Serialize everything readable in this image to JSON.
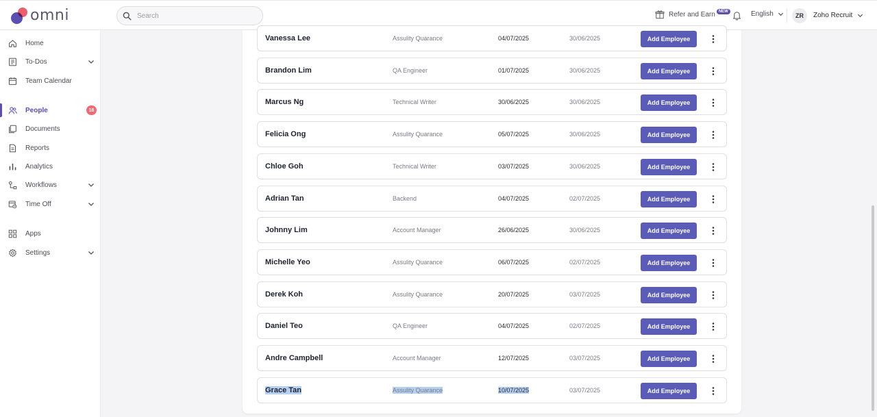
{
  "app": {
    "logo_text": "omni"
  },
  "search": {
    "placeholder": "Search"
  },
  "header": {
    "refer_label": "Refer and Earn",
    "refer_badge": "NEW",
    "language": "English",
    "avatar_initials": "ZR",
    "org_name": "Zoho Recruit"
  },
  "sidebar": {
    "items": [
      {
        "label": "Home",
        "icon": "home-icon"
      },
      {
        "label": "To-Dos",
        "icon": "todo-icon",
        "expandable": true
      },
      {
        "label": "Team Calendar",
        "icon": "calendar-icon"
      },
      {
        "label": "People",
        "icon": "people-icon",
        "active": true,
        "count": "18"
      },
      {
        "label": "Documents",
        "icon": "documents-icon"
      },
      {
        "label": "Reports",
        "icon": "reports-icon"
      },
      {
        "label": "Analytics",
        "icon": "analytics-icon"
      },
      {
        "label": "Workflows",
        "icon": "workflows-icon",
        "expandable": true
      },
      {
        "label": "Time Off",
        "icon": "time-off-icon",
        "expandable": true
      },
      {
        "label": "Apps",
        "icon": "apps-icon"
      },
      {
        "label": "Settings",
        "icon": "settings-icon",
        "expandable": true
      }
    ]
  },
  "candidates": {
    "button_label": "Add Employee",
    "rows": [
      {
        "name": "Vanessa Lee",
        "role": "Assulity Quarance",
        "start_date": "04/07/2025",
        "date2": "30/06/2025"
      },
      {
        "name": "Brandon Lim",
        "role": "QA Engineer",
        "start_date": "01/07/2025",
        "date2": "30/06/2025"
      },
      {
        "name": "Marcus Ng",
        "role": "Technical Writer",
        "start_date": "30/06/2025",
        "date2": "30/06/2025"
      },
      {
        "name": "Felicia Ong",
        "role": "Assulity Quarance",
        "start_date": "05/07/2025",
        "date2": "30/06/2025"
      },
      {
        "name": "Chloe Goh",
        "role": "Technical Writer",
        "start_date": "03/07/2025",
        "date2": "30/06/2025"
      },
      {
        "name": "Adrian Tan",
        "role": "Backend",
        "start_date": "04/07/2025",
        "date2": "02/07/2025"
      },
      {
        "name": "Johnny Lim",
        "role": "Account Manager",
        "start_date": "26/06/2025",
        "date2": "30/06/2025"
      },
      {
        "name": "Michelle Yeo",
        "role": "Assulity Quarance",
        "start_date": "06/07/2025",
        "date2": "02/07/2025"
      },
      {
        "name": "Derek Koh",
        "role": "Assulity Quarance",
        "start_date": "20/07/2025",
        "date2": "03/07/2025"
      },
      {
        "name": "Daniel Teo",
        "role": "QA Engineer",
        "start_date": "04/07/2025",
        "date2": "02/07/2025"
      },
      {
        "name": "Andre Campbell",
        "role": "Account Manager",
        "start_date": "12/07/2025",
        "date2": "03/07/2025"
      },
      {
        "name": "Grace Tan",
        "role": "Assulity Quarance",
        "start_date": "10/07/2025",
        "date2": "03/07/2025",
        "selected": true
      }
    ]
  },
  "colors": {
    "accent": "#5b5bb8",
    "badge": "#ee6b74",
    "selection": "#b5d0f0"
  }
}
